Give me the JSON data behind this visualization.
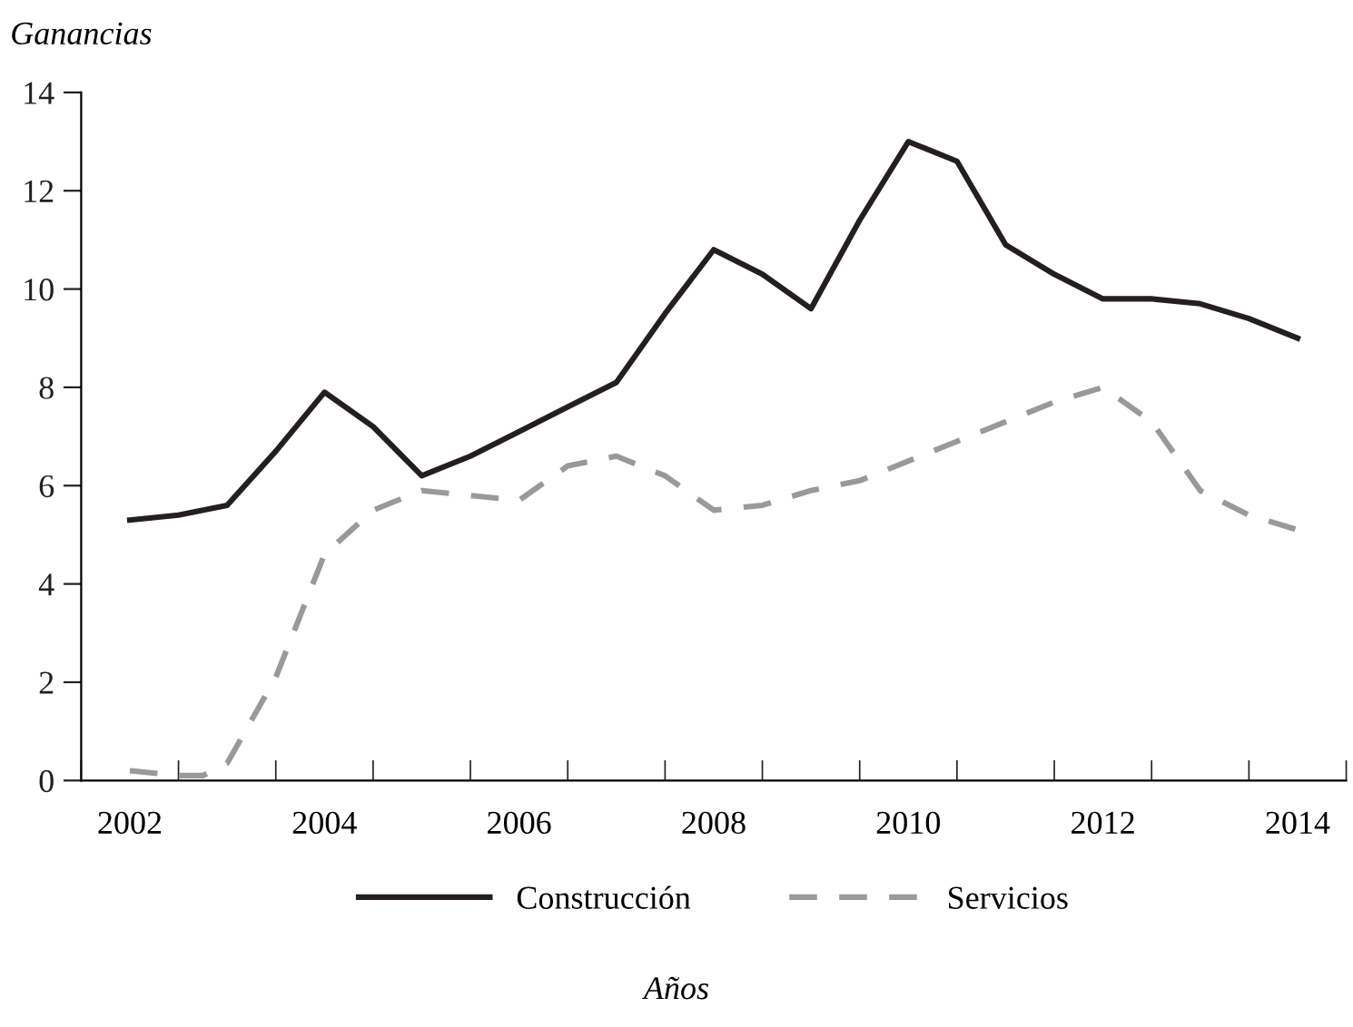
{
  "chart_data": {
    "type": "line",
    "ylabel": "Ganancias",
    "annotations": [
      "Años"
    ],
    "xlim": [
      2001.5,
      2014.5
    ],
    "xticks": [
      {
        "value": 2001.5,
        "label": null
      },
      {
        "value": 2002,
        "label": "2002"
      },
      {
        "value": 2002.5,
        "label": null
      },
      {
        "value": 2003.5,
        "label": null
      },
      {
        "value": 2004,
        "label": "2004"
      },
      {
        "value": 2004.5,
        "label": null
      },
      {
        "value": 2005.5,
        "label": null
      },
      {
        "value": 2006,
        "label": "2006"
      },
      {
        "value": 2006.5,
        "label": null
      },
      {
        "value": 2007.5,
        "label": null
      },
      {
        "value": 2008,
        "label": "2008"
      },
      {
        "value": 2008.5,
        "label": null
      },
      {
        "value": 2009.5,
        "label": null
      },
      {
        "value": 2010,
        "label": "2010"
      },
      {
        "value": 2010.5,
        "label": null
      },
      {
        "value": 2011.5,
        "label": null
      },
      {
        "value": 2012,
        "label": "2012"
      },
      {
        "value": 2012.5,
        "label": null
      },
      {
        "value": 2013.5,
        "label": null
      },
      {
        "value": 2014,
        "label": "2014"
      },
      {
        "value": 2014.5,
        "label": null
      }
    ],
    "ylim": [
      0,
      14
    ],
    "yticks": [
      0,
      2,
      4,
      6,
      8,
      10,
      12,
      14
    ],
    "grid": false,
    "legend": "bottom",
    "marker": "none",
    "series": [
      {
        "name": "Construcción",
        "color": "#231f20",
        "line_style": "solid",
        "x": [
          2002,
          2002.5,
          2003,
          2003.5,
          2004,
          2004.5,
          2005,
          2005.5,
          2006,
          2006.5,
          2007,
          2007.5,
          2008,
          2008.5,
          2009,
          2009.5,
          2010,
          2010.5,
          2011,
          2011.5,
          2012,
          2012.5,
          2013,
          2013.5,
          2014
        ],
        "values": [
          5.3,
          5.4,
          5.6,
          6.7,
          7.9,
          7.2,
          6.2,
          6.6,
          7.1,
          7.6,
          8.1,
          9.5,
          10.8,
          10.3,
          9.6,
          11.4,
          13.0,
          12.6,
          10.9,
          10.3,
          9.8,
          9.8,
          9.7,
          9.4,
          9.0
        ]
      },
      {
        "name": "Servicios",
        "color": "#999999",
        "line_style": "dashed",
        "x": [
          2002,
          2002.5,
          2002.75,
          2003,
          2003.5,
          2004,
          2004.5,
          2005,
          2005.5,
          2006,
          2006.5,
          2007,
          2007.5,
          2008,
          2008.5,
          2009,
          2009.5,
          2010,
          2010.5,
          2011,
          2011.5,
          2012,
          2012.5,
          2013,
          2013.5,
          2014
        ],
        "values": [
          0.2,
          0.1,
          0.1,
          0.35,
          2.1,
          4.6,
          5.5,
          5.9,
          5.8,
          5.7,
          6.4,
          6.6,
          6.2,
          5.5,
          5.6,
          5.9,
          6.1,
          6.5,
          6.9,
          7.3,
          7.7,
          8.0,
          7.3,
          5.9,
          5.4,
          5.1
        ]
      }
    ]
  }
}
